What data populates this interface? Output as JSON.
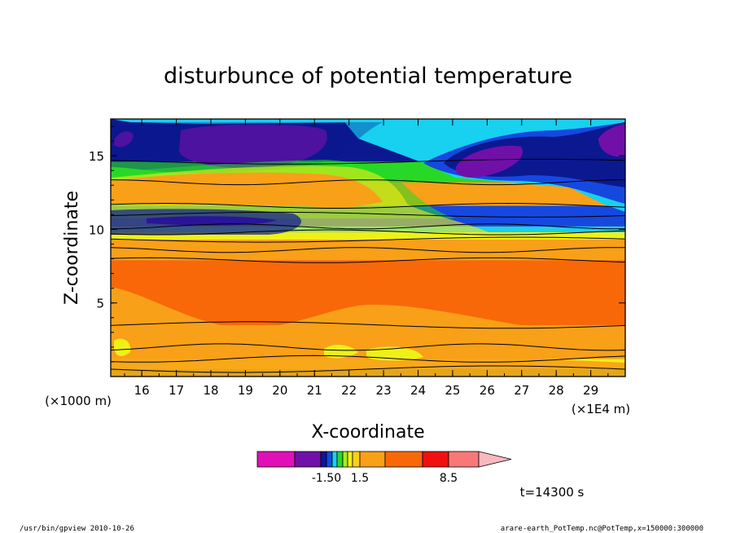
{
  "chart_data": {
    "type": "heatmap",
    "title": "disturbunce of potential temperature",
    "xlabel": "X-coordinate",
    "ylabel": "Z-coordinate",
    "x_unit_left": "(×1000 m)",
    "x_unit_right": "(×1E4 m)",
    "x_ticks": [
      16,
      17,
      18,
      19,
      20,
      21,
      22,
      23,
      24,
      25,
      26,
      27,
      28,
      29
    ],
    "y_ticks": [
      5,
      10,
      15
    ],
    "xlim": [
      15.1,
      30.0
    ],
    "ylim": [
      0,
      17.5
    ],
    "colorbar": {
      "labels": [
        {
          "text": "-1.50",
          "value": -1.5
        },
        {
          "text": "1.5",
          "value": 1.5
        },
        {
          "text": "8.5",
          "value": 8.5
        }
      ]
    },
    "colors": {
      "magenta": "#e010b8",
      "purple": "#7010a8",
      "navy": "#0c1890",
      "blue": "#1648e0",
      "cyan": "#18d0f0",
      "green": "#28d828",
      "lime": "#a8ec20",
      "yellow": "#f0f018",
      "light_orange": "#f8a018",
      "orange": "#f86808",
      "red": "#f01010",
      "salmon": "#f87878",
      "pink": "#f8b8c0"
    },
    "bands": [
      {
        "z": [
          0.0,
          0.5
        ],
        "color": "green"
      },
      {
        "z": [
          0.5,
          1.2
        ],
        "color": "yellow"
      },
      {
        "z": [
          1.2,
          3.5
        ],
        "color": "light_orange"
      },
      {
        "z": [
          3.5,
          7.9
        ],
        "color": "orange"
      },
      {
        "z": [
          7.9,
          9.3
        ],
        "color": "light_orange"
      },
      {
        "z": [
          9.3,
          9.8
        ],
        "color": "yellow"
      },
      {
        "z": [
          9.8,
          10.2
        ],
        "color": "cyan"
      },
      {
        "z": [
          10.2,
          11.6
        ],
        "color": "blue"
      },
      {
        "z": [
          11.6,
          13.2
        ],
        "color": "light_orange"
      },
      {
        "z": [
          13.2,
          14.6
        ],
        "color": "green"
      },
      {
        "z": [
          14.6,
          17.5
        ],
        "color": "navy"
      }
    ],
    "time_label": "t=14300 s"
  },
  "footer": {
    "left": "/usr/bin/gpview   2010-10-26",
    "right": "arare-earth_PotTemp.nc@PotTemp,x=150000:300000"
  }
}
